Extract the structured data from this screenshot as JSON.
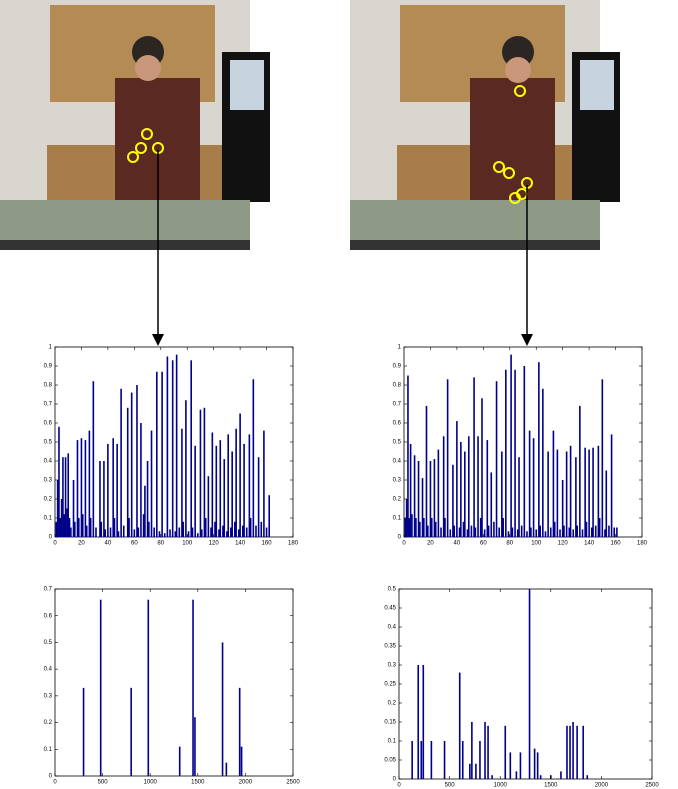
{
  "chart_data": [
    {
      "type": "bar",
      "color": "#00008b",
      "x": [
        1,
        2,
        3,
        4,
        5,
        6,
        7,
        8,
        9,
        10,
        11,
        12,
        14,
        15,
        17,
        18,
        20,
        21,
        23,
        24,
        26,
        27,
        29,
        31,
        34,
        35,
        37,
        38,
        40,
        42,
        44,
        45,
        47,
        48,
        50,
        52,
        55,
        56,
        58,
        60,
        62,
        63,
        65,
        67,
        68,
        70,
        71,
        73,
        75,
        77,
        79,
        81,
        83,
        85,
        87,
        89,
        91,
        92,
        94,
        96,
        97,
        99,
        101,
        103,
        104,
        106,
        108,
        110,
        111,
        113,
        114,
        116,
        118,
        119,
        121,
        122,
        124,
        125,
        127,
        128,
        130,
        131,
        133,
        134,
        136,
        137,
        139,
        140,
        142,
        143,
        145,
        147,
        148,
        150,
        152,
        154,
        156,
        158,
        160,
        162
      ],
      "values": [
        0.08,
        0.3,
        0.58,
        0.1,
        0.2,
        0.42,
        0.12,
        0.42,
        0.15,
        0.44,
        0.1,
        0.05,
        0.3,
        0.08,
        0.51,
        0.1,
        0.52,
        0.12,
        0.51,
        0.06,
        0.56,
        0.1,
        0.82,
        0.05,
        0.4,
        0.08,
        0.4,
        0.04,
        0.49,
        0.05,
        0.52,
        0.1,
        0.49,
        0.03,
        0.78,
        0.06,
        0.68,
        0.1,
        0.76,
        0.04,
        0.8,
        0.05,
        0.6,
        0.12,
        0.27,
        0.4,
        0.08,
        0.56,
        0.05,
        0.87,
        0.03,
        0.87,
        0.02,
        0.95,
        0.04,
        0.93,
        0.03,
        0.96,
        0.05,
        0.57,
        0.08,
        0.72,
        0.03,
        0.93,
        0.05,
        0.48,
        0.02,
        0.67,
        0.04,
        0.68,
        0.1,
        0.32,
        0.05,
        0.55,
        0.08,
        0.48,
        0.04,
        0.51,
        0.06,
        0.41,
        0.03,
        0.54,
        0.05,
        0.45,
        0.08,
        0.57,
        0.04,
        0.65,
        0.06,
        0.49,
        0.05,
        0.54,
        0.1,
        0.83,
        0.06,
        0.42,
        0.08,
        0.56,
        0.05,
        0.22
      ],
      "xlim": [
        0,
        180
      ],
      "ylim": [
        0,
        1
      ],
      "xticks": [
        0,
        20,
        40,
        60,
        80,
        100,
        120,
        140,
        160,
        180
      ],
      "yticks": [
        0,
        0.1,
        0.2,
        0.3,
        0.4,
        0.5,
        0.6,
        0.7,
        0.8,
        0.9,
        1
      ]
    },
    {
      "type": "bar",
      "color": "#00008b",
      "x": [
        1,
        2,
        3,
        4,
        5,
        6,
        8,
        9,
        11,
        12,
        14,
        15,
        17,
        18,
        20,
        21,
        23,
        24,
        26,
        28,
        30,
        31,
        33,
        35,
        37,
        38,
        40,
        42,
        43,
        45,
        46,
        48,
        49,
        51,
        53,
        54,
        56,
        58,
        59,
        61,
        63,
        64,
        66,
        68,
        70,
        72,
        74,
        75,
        77,
        79,
        81,
        82,
        84,
        86,
        87,
        89,
        91,
        93,
        95,
        96,
        98,
        100,
        102,
        103,
        105,
        107,
        109,
        111,
        113,
        114,
        116,
        118,
        120,
        121,
        123,
        125,
        126,
        128,
        130,
        131,
        133,
        135,
        137,
        138,
        140,
        142,
        143,
        145,
        147,
        148,
        150,
        152,
        153,
        155,
        157,
        159,
        161
      ],
      "values": [
        0.1,
        0.2,
        0.85,
        0.1,
        0.49,
        0.12,
        0.43,
        0.1,
        0.4,
        0.08,
        0.31,
        0.1,
        0.69,
        0.06,
        0.4,
        0.1,
        0.41,
        0.08,
        0.46,
        0.05,
        0.53,
        0.1,
        0.83,
        0.04,
        0.38,
        0.06,
        0.61,
        0.05,
        0.5,
        0.08,
        0.45,
        0.04,
        0.53,
        0.06,
        0.84,
        0.05,
        0.53,
        0.1,
        0.73,
        0.04,
        0.51,
        0.06,
        0.34,
        0.08,
        0.82,
        0.05,
        0.45,
        0.1,
        0.88,
        0.03,
        0.96,
        0.05,
        0.88,
        0.04,
        0.42,
        0.06,
        0.9,
        0.03,
        0.56,
        0.05,
        0.52,
        0.04,
        0.92,
        0.06,
        0.78,
        0.03,
        0.45,
        0.05,
        0.56,
        0.08,
        0.46,
        0.04,
        0.3,
        0.06,
        0.45,
        0.05,
        0.48,
        0.04,
        0.42,
        0.06,
        0.69,
        0.04,
        0.47,
        0.08,
        0.46,
        0.05,
        0.47,
        0.06,
        0.48,
        0.1,
        0.83,
        0.04,
        0.35,
        0.06,
        0.54,
        0.05,
        0.05
      ],
      "xlim": [
        0,
        180
      ],
      "ylim": [
        0,
        1
      ],
      "xticks": [
        0,
        20,
        40,
        60,
        80,
        100,
        120,
        140,
        160,
        180
      ],
      "yticks": [
        0,
        0.1,
        0.2,
        0.3,
        0.4,
        0.5,
        0.6,
        0.7,
        0.8,
        0.9,
        1
      ]
    },
    {
      "type": "bar",
      "color": "#00008b",
      "x": [
        300,
        480,
        800,
        980,
        1310,
        1450,
        1470,
        1760,
        1800,
        1940,
        1960
      ],
      "values": [
        0.33,
        0.66,
        0.33,
        0.66,
        0.11,
        0.66,
        0.22,
        0.5,
        0.05,
        0.33,
        0.11
      ],
      "xlim": [
        0,
        2500
      ],
      "ylim": [
        0,
        0.7
      ],
      "xticks": [
        0,
        500,
        1000,
        1500,
        2000,
        2500
      ],
      "yticks": [
        0,
        0.1,
        0.2,
        0.3,
        0.4,
        0.5,
        0.6,
        0.7
      ]
    },
    {
      "type": "bar",
      "color": "#00008b",
      "x": [
        130,
        190,
        220,
        240,
        320,
        450,
        600,
        630,
        700,
        720,
        760,
        800,
        850,
        880,
        920,
        1050,
        1100,
        1160,
        1200,
        1290,
        1340,
        1370,
        1400,
        1500,
        1600,
        1660,
        1690,
        1720,
        1760,
        1820,
        1860
      ],
      "values": [
        0.1,
        0.3,
        0.1,
        0.3,
        0.1,
        0.1,
        0.28,
        0.1,
        0.04,
        0.15,
        0.04,
        0.1,
        0.15,
        0.14,
        0.01,
        0.14,
        0.07,
        0.02,
        0.07,
        0.5,
        0.08,
        0.07,
        0.01,
        0.01,
        0.02,
        0.14,
        0.14,
        0.15,
        0.14,
        0.14,
        0.01
      ],
      "xlim": [
        0,
        2500
      ],
      "ylim": [
        0,
        0.5
      ],
      "xticks": [
        0,
        500,
        1000,
        1500,
        2000,
        2500
      ],
      "yticks": [
        0,
        0.05,
        0.1,
        0.15,
        0.2,
        0.25,
        0.3,
        0.35,
        0.4,
        0.45,
        0.5
      ]
    }
  ]
}
